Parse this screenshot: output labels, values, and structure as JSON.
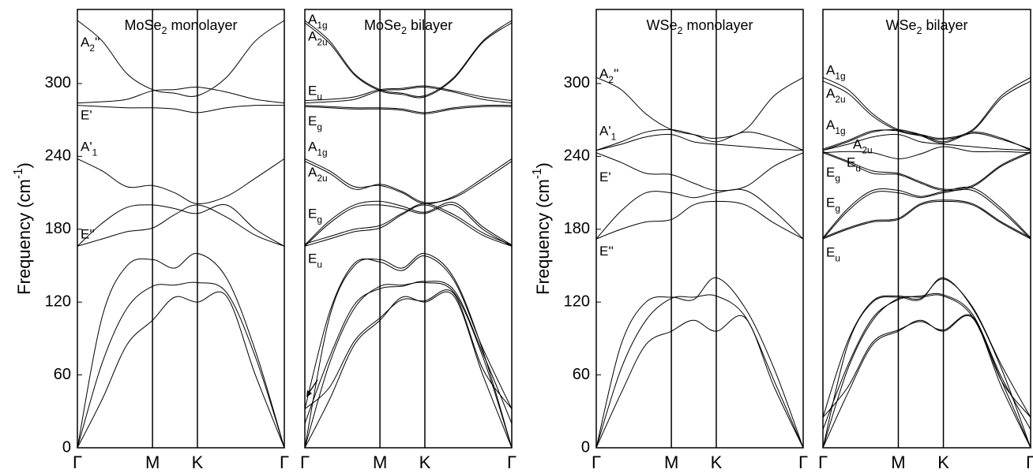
{
  "chart_data": [
    {
      "type": "line",
      "title": "MoSe2 monolayer",
      "ylabel": "Frequency (cm-1)",
      "color": "#000000",
      "x": [
        0,
        0.12,
        0.24,
        0.363,
        0.47,
        0.58,
        0.72,
        0.86,
        1
      ],
      "xlim": [
        0,
        1
      ],
      "ylim": [
        0,
        361
      ],
      "xticks": [
        {
          "value": 0,
          "label": "Γ"
        },
        {
          "value": 0.363,
          "label": "M"
        },
        {
          "value": 0.58,
          "label": "K"
        },
        {
          "value": 1,
          "label": "Γ"
        }
      ],
      "yticks": [
        0,
        60,
        120,
        180,
        240,
        300
      ],
      "annotations": [
        "A2''",
        "E'",
        "A'1",
        "E''"
      ],
      "series": [
        {
          "values": [
            0,
            108,
            150,
            155,
            148,
            160,
            140,
            80,
            0
          ]
        },
        {
          "values": [
            0,
            70,
            115,
            133,
            134,
            136,
            128,
            75,
            0
          ]
        },
        {
          "values": [
            0,
            40,
            85,
            105,
            124,
            120,
            125,
            60,
            0
          ]
        },
        {
          "values": [
            166,
            172,
            178,
            181,
            192,
            200,
            190,
            175,
            166
          ]
        },
        {
          "values": [
            166,
            185,
            198,
            200,
            197,
            193,
            200,
            180,
            166
          ]
        },
        {
          "values": [
            238,
            228,
            215,
            216,
            210,
            201,
            207,
            222,
            238
          ]
        },
        {
          "values": [
            284,
            285,
            287,
            294,
            295,
            297,
            293,
            287,
            284
          ]
        },
        {
          "values": [
            282,
            281,
            280,
            280,
            279,
            276,
            280,
            282,
            282
          ]
        },
        {
          "values": [
            352,
            335,
            308,
            295,
            292,
            290,
            305,
            335,
            352
          ]
        }
      ]
    },
    {
      "type": "line",
      "title": "MoSe2 bilayer",
      "color": "#000000",
      "x": [
        0,
        0.12,
        0.24,
        0.363,
        0.47,
        0.58,
        0.72,
        0.86,
        1
      ],
      "xlim": [
        0,
        1
      ],
      "ylim": [
        0,
        361
      ],
      "xticks": [
        {
          "value": 0,
          "label": "Γ"
        },
        {
          "value": 0.363,
          "label": "M"
        },
        {
          "value": 0.58,
          "label": "K"
        },
        {
          "value": 1,
          "label": "Γ"
        }
      ],
      "annotations": [
        "A1g",
        "A2u",
        "Eu",
        "Eg",
        "A1g",
        "A2u",
        "Eg",
        "Eu"
      ],
      "series": [
        {
          "values": [
            0,
            108,
            150,
            155,
            148,
            160,
            140,
            80,
            0
          ]
        },
        {
          "values": [
            32,
            112,
            152,
            153,
            146,
            158,
            138,
            82,
            32
          ]
        },
        {
          "values": [
            0,
            70,
            115,
            133,
            134,
            136,
            128,
            75,
            0
          ]
        },
        {
          "values": [
            20,
            75,
            118,
            131,
            133,
            137,
            130,
            78,
            20
          ]
        },
        {
          "values": [
            0,
            40,
            85,
            105,
            124,
            120,
            125,
            60,
            0
          ]
        },
        {
          "values": [
            32,
            50,
            88,
            107,
            122,
            121,
            127,
            65,
            32
          ]
        },
        {
          "values": [
            166,
            172,
            178,
            181,
            192,
            200,
            190,
            175,
            166
          ]
        },
        {
          "values": [
            168,
            174,
            180,
            183,
            193,
            201,
            192,
            177,
            167
          ]
        },
        {
          "values": [
            166,
            185,
            198,
            200,
            197,
            193,
            200,
            180,
            166
          ]
        },
        {
          "values": [
            167,
            187,
            200,
            203,
            199,
            194,
            202,
            182,
            167
          ]
        },
        {
          "values": [
            238,
            228,
            215,
            216,
            210,
            201,
            207,
            222,
            238
          ]
        },
        {
          "values": [
            236,
            226,
            213,
            217,
            211,
            202,
            206,
            220,
            236
          ]
        },
        {
          "values": [
            284,
            285,
            287,
            294,
            295,
            297,
            293,
            287,
            284
          ]
        },
        {
          "values": [
            286,
            287,
            289,
            295,
            296,
            298,
            294,
            289,
            286
          ]
        },
        {
          "values": [
            282,
            281,
            280,
            280,
            279,
            276,
            280,
            282,
            282
          ]
        },
        {
          "values": [
            281,
            280,
            279,
            279,
            278,
            275,
            279,
            281,
            281
          ]
        },
        {
          "values": [
            352,
            335,
            308,
            295,
            292,
            290,
            305,
            335,
            352
          ]
        },
        {
          "values": [
            350,
            333,
            307,
            294,
            291,
            289,
            304,
            334,
            350
          ]
        }
      ]
    },
    {
      "type": "line",
      "title": "WSe2 monolayer",
      "ylabel": "Frequency (cm-1)",
      "color": "#000000",
      "x": [
        0,
        0.12,
        0.24,
        0.363,
        0.47,
        0.58,
        0.72,
        0.86,
        1
      ],
      "xlim": [
        0,
        1
      ],
      "ylim": [
        0,
        361
      ],
      "xticks": [
        {
          "value": 0,
          "label": "Γ"
        },
        {
          "value": 0.363,
          "label": "M"
        },
        {
          "value": 0.58,
          "label": "K"
        },
        {
          "value": 1,
          "label": "Γ"
        }
      ],
      "yticks": [
        0,
        60,
        120,
        180,
        240,
        300
      ],
      "annotations": [
        "A2''",
        "A'1",
        "E'",
        "E''"
      ],
      "series": [
        {
          "values": [
            0,
            85,
            120,
            124,
            122,
            140,
            115,
            65,
            0
          ]
        },
        {
          "values": [
            0,
            65,
            105,
            123,
            124,
            125,
            108,
            55,
            0
          ]
        },
        {
          "values": [
            0,
            45,
            85,
            96,
            105,
            96,
            107,
            50,
            0
          ]
        },
        {
          "values": [
            172,
            180,
            186,
            188,
            200,
            203,
            200,
            185,
            172
          ]
        },
        {
          "values": [
            172,
            195,
            210,
            210,
            206,
            210,
            212,
            195,
            172
          ]
        },
        {
          "values": [
            243,
            235,
            226,
            225,
            218,
            212,
            215,
            232,
            243
          ]
        },
        {
          "values": [
            245,
            252,
            260,
            262,
            258,
            252,
            260,
            255,
            245
          ]
        },
        {
          "values": [
            245,
            250,
            256,
            258,
            252,
            250,
            248,
            246,
            245
          ]
        },
        {
          "values": [
            305,
            295,
            275,
            262,
            258,
            255,
            262,
            290,
            305
          ]
        }
      ]
    },
    {
      "type": "line",
      "title": "WSe2 bilayer",
      "color": "#000000",
      "x": [
        0,
        0.12,
        0.24,
        0.363,
        0.47,
        0.58,
        0.72,
        0.86,
        1
      ],
      "xlim": [
        0,
        1
      ],
      "ylim": [
        0,
        361
      ],
      "xticks": [
        {
          "value": 0,
          "label": "Γ"
        },
        {
          "value": 0.363,
          "label": "M"
        },
        {
          "value": 0.58,
          "label": "K"
        },
        {
          "value": 1,
          "label": "Γ"
        }
      ],
      "annotations": [
        "A1g",
        "A2u",
        "A1g",
        "A2u",
        "Eg",
        "Eu",
        "Eg",
        "Eu"
      ],
      "series": [
        {
          "values": [
            0,
            85,
            120,
            124,
            122,
            140,
            115,
            65,
            0
          ]
        },
        {
          "values": [
            25,
            88,
            121,
            125,
            123,
            139,
            116,
            68,
            25
          ]
        },
        {
          "values": [
            0,
            65,
            105,
            123,
            124,
            125,
            108,
            55,
            0
          ]
        },
        {
          "values": [
            15,
            68,
            107,
            122,
            125,
            126,
            110,
            58,
            15
          ]
        },
        {
          "values": [
            0,
            45,
            85,
            96,
            105,
            96,
            107,
            50,
            0
          ]
        },
        {
          "values": [
            25,
            50,
            87,
            97,
            104,
            97,
            108,
            55,
            25
          ]
        },
        {
          "values": [
            172,
            180,
            186,
            188,
            200,
            203,
            200,
            185,
            172
          ]
        },
        {
          "values": [
            173,
            181,
            187,
            189,
            201,
            204,
            201,
            186,
            173
          ]
        },
        {
          "values": [
            172,
            195,
            210,
            210,
            206,
            210,
            212,
            195,
            172
          ]
        },
        {
          "values": [
            173,
            197,
            212,
            212,
            207,
            211,
            214,
            197,
            173
          ]
        },
        {
          "values": [
            243,
            235,
            226,
            225,
            218,
            212,
            215,
            232,
            243
          ]
        },
        {
          "values": [
            244,
            236,
            228,
            226,
            219,
            213,
            216,
            233,
            244
          ]
        },
        {
          "values": [
            245,
            252,
            260,
            262,
            258,
            252,
            260,
            255,
            245
          ]
        },
        {
          "values": [
            246,
            253,
            261,
            261,
            257,
            251,
            259,
            254,
            246
          ]
        },
        {
          "values": [
            245,
            250,
            256,
            258,
            252,
            250,
            248,
            246,
            245
          ]
        },
        {
          "values": [
            243,
            244,
            243,
            238,
            242,
            248,
            244,
            244,
            243
          ]
        },
        {
          "values": [
            305,
            295,
            275,
            262,
            258,
            255,
            262,
            290,
            305
          ]
        },
        {
          "values": [
            302,
            292,
            273,
            261,
            257,
            254,
            261,
            288,
            302
          ]
        }
      ]
    }
  ]
}
